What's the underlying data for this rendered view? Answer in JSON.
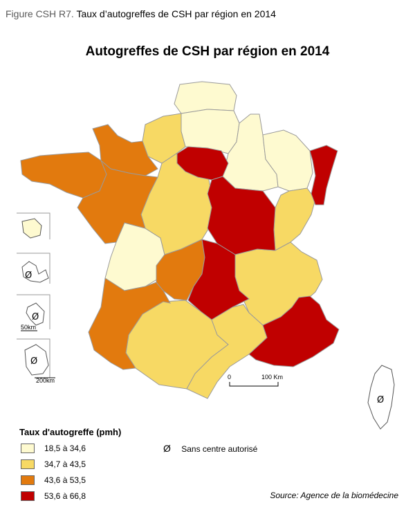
{
  "figure": {
    "number": "Figure CSH R7.",
    "caption": "Taux d’autogreffes de CSH par région en 2014"
  },
  "map_title": "Autogreffes de CSH par région en 2014",
  "colors": {
    "class1": "#fefad0",
    "class2": "#f7d964",
    "class3": "#e27a0e",
    "class4": "#c00000"
  },
  "legend": {
    "title": "Taux d'autogreffe (pmh)",
    "items": [
      {
        "label": "18,5 à 34,6"
      },
      {
        "label": "34,7 à 43,5"
      },
      {
        "label": "43,6 à 53,5"
      },
      {
        "label": "53,6 à 66,8"
      }
    ],
    "no_center_symbol": "Ø",
    "no_center_label": "Sans centre autorisé"
  },
  "scale": {
    "zero": "0",
    "main": "100 Km",
    "inset_small": "50km",
    "inset_large": "200km"
  },
  "source": "Source: Agence de la biomédecine"
}
